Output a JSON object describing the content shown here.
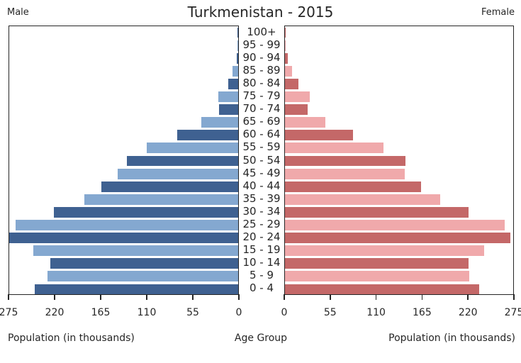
{
  "header": {
    "male_label": "Male",
    "female_label": "Female",
    "title": "Turkmenistan - 2015"
  },
  "axis_captions": {
    "left": "Population (in thousands)",
    "center": "Age Group",
    "right": "Population (in thousands)"
  },
  "chart_data": {
    "type": "bar",
    "subtype": "population-pyramid",
    "title": "Turkmenistan - 2015",
    "categories_top_to_bottom": [
      "100+",
      "95 - 99",
      "90 - 94",
      "85 - 89",
      "80 - 84",
      "75 - 79",
      "70 - 74",
      "65 - 69",
      "60 - 64",
      "55 - 59",
      "50 - 54",
      "45 - 49",
      "40 - 44",
      "35 - 39",
      "30 - 34",
      "25 - 29",
      "20 - 24",
      "15 - 19",
      "10 - 14",
      "5 - 9",
      "0 - 4"
    ],
    "series": [
      {
        "name": "Male",
        "side": "left",
        "color_dark": "#3f6191",
        "color_light": "#84a8d0",
        "values_thousands": [
          0.5,
          1,
          2,
          6.5,
          12,
          24,
          23,
          44,
          73,
          110,
          134,
          145,
          164,
          185,
          221,
          267,
          275,
          246,
          226,
          229,
          244
        ]
      },
      {
        "name": "Female",
        "side": "right",
        "color_dark": "#c46868",
        "color_light": "#f0a9ab",
        "values_thousands": [
          0.5,
          1,
          3,
          8.5,
          16,
          30,
          27,
          49,
          82,
          119,
          145,
          144,
          164,
          187,
          221,
          265,
          272,
          240,
          221,
          222,
          234
        ]
      }
    ],
    "x_axis": {
      "label": "Population (in thousands)",
      "ticks": [
        0,
        55,
        110,
        165,
        220,
        275
      ],
      "max": 275,
      "male_tick_labels_left_to_right": [
        "275",
        "220",
        "165",
        "110",
        "55",
        "0"
      ],
      "female_tick_labels_left_to_right": [
        "0",
        "55",
        "110",
        "165",
        "220",
        "275"
      ]
    },
    "y_axis": {
      "label": "Age Group"
    },
    "layout": {
      "grid": false,
      "legend": "none",
      "bar_alternation": "even-rows-dark"
    },
    "axis_color": "#262626",
    "background_color": "#ffffff"
  }
}
